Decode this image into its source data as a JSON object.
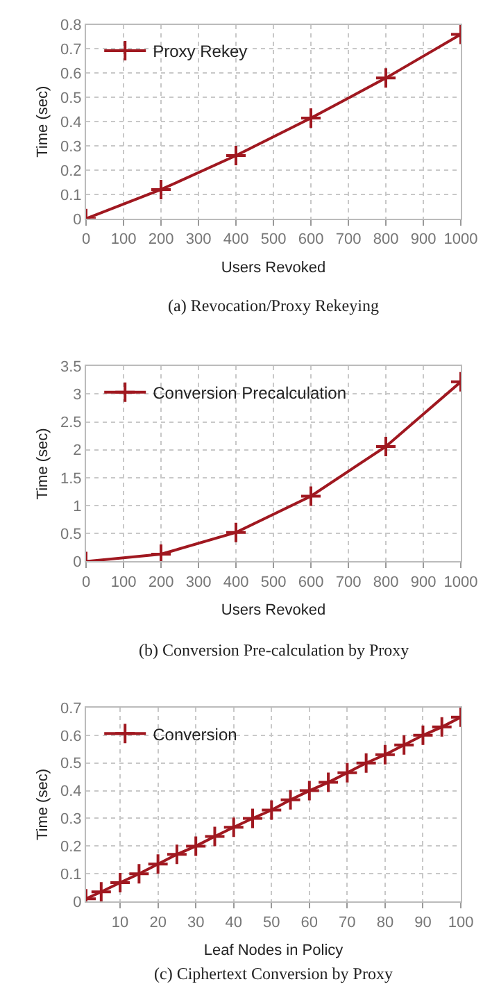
{
  "chart_data": [
    {
      "type": "line",
      "xlabel": "Users Revoked",
      "ylabel": "Time (sec)",
      "annotations": [
        "(a) Revocation/Proxy Rekeying"
      ],
      "x": [
        0,
        200,
        400,
        600,
        800,
        1000
      ],
      "series": [
        {
          "name": "Proxy Rekey",
          "color": "#a01820",
          "values": [
            0,
            0.12,
            0.26,
            0.415,
            0.58,
            0.76
          ]
        }
      ],
      "xlim": [
        0,
        1000
      ],
      "xticks": [
        0,
        100,
        200,
        300,
        400,
        500,
        600,
        700,
        800,
        900,
        1000
      ],
      "ylim": [
        0,
        0.8
      ],
      "yticks": [
        0,
        0.1,
        0.2,
        0.3,
        0.4,
        0.5,
        0.6,
        0.7,
        0.8
      ],
      "grid": true,
      "legend": "top left",
      "marker": "cross",
      "line_style": "solid"
    },
    {
      "type": "line",
      "xlabel": "Users Revoked",
      "ylabel": "Time (sec)",
      "annotations": [
        "(b) Conversion Pre-calculation by Proxy"
      ],
      "x": [
        0,
        200,
        400,
        600,
        800,
        1000
      ],
      "series": [
        {
          "name": "Conversion Precalculation",
          "color": "#a01820",
          "values": [
            0,
            0.13,
            0.52,
            1.17,
            2.06,
            3.22
          ]
        }
      ],
      "xlim": [
        0,
        1000
      ],
      "xticks": [
        0,
        100,
        200,
        300,
        400,
        500,
        600,
        700,
        800,
        900,
        1000
      ],
      "ylim": [
        0,
        3.5
      ],
      "yticks": [
        0,
        0.5,
        1,
        1.5,
        2,
        2.5,
        3,
        3.5
      ],
      "grid": true,
      "legend": "top left",
      "marker": "cross",
      "line_style": "solid"
    },
    {
      "type": "line",
      "xlabel": "Leaf Nodes in Policy",
      "ylabel": "Time (sec)",
      "annotations": [
        "(c) Ciphertext Conversion by Proxy"
      ],
      "x": [
        1,
        5,
        10,
        15,
        20,
        25,
        30,
        35,
        40,
        45,
        50,
        55,
        60,
        65,
        70,
        75,
        80,
        85,
        90,
        95,
        100
      ],
      "series": [
        {
          "name": "Conversion",
          "color": "#a01820",
          "values": [
            0.01,
            0.035,
            0.068,
            0.1,
            0.135,
            0.17,
            0.2,
            0.235,
            0.268,
            0.3,
            0.33,
            0.367,
            0.4,
            0.43,
            0.465,
            0.5,
            0.53,
            0.565,
            0.6,
            0.63,
            0.665
          ]
        }
      ],
      "xlim": [
        1,
        100
      ],
      "xticks": [
        10,
        20,
        30,
        40,
        50,
        60,
        70,
        80,
        90,
        100
      ],
      "ylim": [
        0,
        0.7
      ],
      "yticks": [
        0,
        0.1,
        0.2,
        0.3,
        0.4,
        0.5,
        0.6,
        0.7
      ],
      "grid": true,
      "legend": "top left",
      "marker": "cross",
      "line_style": "solid"
    }
  ]
}
